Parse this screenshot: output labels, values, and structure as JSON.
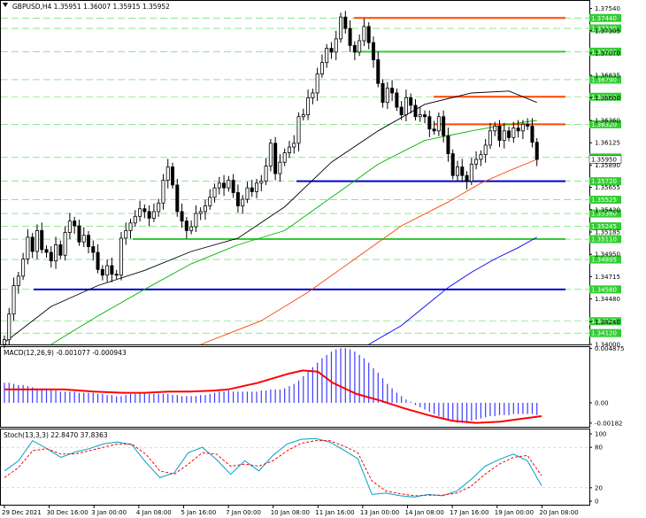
{
  "header": {
    "main": "GBPUSD,H4  1.35951 1.36007 1.35915 1.35952",
    "macd": "MACD(12,26,9) -0.001077 -0.000943",
    "stoch": "Stoch(13,3,3) 22.8470 37.8363"
  },
  "colors": {
    "background": "#ffffff",
    "candle": "#000000",
    "ma_black": "#000000",
    "ma_green": "#00b400",
    "ma_orange": "#ff4500",
    "ma_blue": "#0000ff",
    "grid_green": "#00c800",
    "macd_hist": "#3c3cff",
    "macd_signal": "#ff0000",
    "stoch_main": "#00a0c8",
    "stoch_signal": "#ff0000",
    "hline_blue": "#0000cd",
    "hline_green": "#32cd32",
    "hline_orange": "#ff4500",
    "tag_bg": "#32cd32"
  },
  "chart_data": [
    {
      "type": "candlestick",
      "title": "GBPUSD,H4",
      "ohlc_header": [
        "1.35951",
        "1.36007",
        "1.35915",
        "1.35952"
      ],
      "ylim": [
        1.34,
        1.3762
      ],
      "y_ticks": [
        "1.37540",
        "1.37305",
        "1.37070",
        "1.36835",
        "1.36600",
        "1.36360",
        "1.36125",
        "1.35890",
        "1.35655",
        "1.35420",
        "1.35185",
        "1.34950",
        "1.34715",
        "1.34480",
        "1.34240",
        "1.34000"
      ],
      "price_tags": [
        "1.37440",
        "1.37330",
        "1.37085",
        "1.36790",
        "1.36610",
        "1.36320",
        "1.35970",
        "1.35720",
        "1.35525",
        "1.35380",
        "1.35245",
        "1.35110",
        "1.34895",
        "1.34580",
        "1.34245",
        "1.34120"
      ],
      "current_price": "1.35950",
      "x_ticks": [
        "29 Dec 2021",
        "30 Dec 16:00",
        "3 Jan 00:00",
        "4 Jan 08:00",
        "5 Jan 16:00",
        "7 Jan 00:00",
        "10 Jan 08:00",
        "11 Jan 16:00",
        "13 Jan 00:00",
        "14 Jan 08:00",
        "17 Jan 16:00",
        "19 Jan 00:00",
        "20 Jan 08:00"
      ],
      "closes": [
        1.3405,
        1.3432,
        1.3462,
        1.3472,
        1.349,
        1.3513,
        1.3498,
        1.352,
        1.35,
        1.3497,
        1.3488,
        1.3505,
        1.3494,
        1.3518,
        1.353,
        1.3525,
        1.3508,
        1.3515,
        1.3503,
        1.3497,
        1.3479,
        1.3473,
        1.3483,
        1.3474,
        1.3473,
        1.3512,
        1.352,
        1.3528,
        1.3535,
        1.3543,
        1.354,
        1.3533,
        1.354,
        1.3549,
        1.3573,
        1.3587,
        1.3568,
        1.354,
        1.353,
        1.352,
        1.3524,
        1.3538,
        1.354,
        1.3546,
        1.3555,
        1.3565,
        1.357,
        1.3565,
        1.3573,
        1.356,
        1.3546,
        1.3553,
        1.3565,
        1.3561,
        1.357,
        1.3572,
        1.3588,
        1.3612,
        1.358,
        1.3592,
        1.3602,
        1.3608,
        1.3612,
        1.364,
        1.3642,
        1.366,
        1.3665,
        1.3685,
        1.3697,
        1.3712,
        1.3708,
        1.3722,
        1.3745,
        1.3733,
        1.3715,
        1.3708,
        1.372,
        1.3735,
        1.3718,
        1.37,
        1.3675,
        1.3655,
        1.367,
        1.3665,
        1.365,
        1.3642,
        1.366,
        1.3652,
        1.364,
        1.3642,
        1.364,
        1.3627,
        1.3625,
        1.364,
        1.362,
        1.3601,
        1.3578,
        1.3587,
        1.3578,
        1.3572,
        1.359,
        1.3595,
        1.36,
        1.361,
        1.3625,
        1.363,
        1.3615,
        1.3625,
        1.3618,
        1.3628,
        1.3625,
        1.3632,
        1.363,
        1.3613,
        1.3595
      ],
      "horizontal_levels": [
        {
          "name": "orange",
          "value": 1.3744
        },
        {
          "name": "green",
          "value": 1.37085
        },
        {
          "name": "orange",
          "value": 1.3661
        },
        {
          "name": "orange",
          "value": 1.3632
        },
        {
          "name": "blue",
          "value": 1.3572
        },
        {
          "name": "green",
          "value": 1.3511
        },
        {
          "name": "blue",
          "value": 1.3458
        }
      ],
      "moving_averages": [
        {
          "color": "black",
          "points": [
            [
              0,
              1.3402
            ],
            [
              10,
              1.344
            ],
            [
              20,
              1.3462
            ],
            [
              30,
              1.3478
            ],
            [
              40,
              1.3498
            ],
            [
              50,
              1.3512
            ],
            [
              60,
              1.3545
            ],
            [
              70,
              1.3592
            ],
            [
              80,
              1.3625
            ],
            [
              90,
              1.3653
            ],
            [
              100,
              1.3665
            ],
            [
              108,
              1.3667
            ],
            [
              114,
              1.3655
            ]
          ]
        },
        {
          "color": "green",
          "points": [
            [
              10,
              1.34
            ],
            [
              20,
              1.343
            ],
            [
              30,
              1.3458
            ],
            [
              40,
              1.3485
            ],
            [
              50,
              1.3505
            ],
            [
              60,
              1.352
            ],
            [
              70,
              1.3555
            ],
            [
              80,
              1.359
            ],
            [
              90,
              1.3615
            ],
            [
              100,
              1.3625
            ],
            [
              108,
              1.3632
            ],
            [
              114,
              1.3636
            ]
          ]
        },
        {
          "color": "orange",
          "points": [
            [
              42,
              1.34
            ],
            [
              55,
              1.3425
            ],
            [
              65,
              1.3455
            ],
            [
              75,
              1.349
            ],
            [
              85,
              1.3525
            ],
            [
              95,
              1.355
            ],
            [
              102,
              1.357
            ],
            [
              108,
              1.3583
            ],
            [
              114,
              1.3595
            ]
          ]
        },
        {
          "color": "blue",
          "points": [
            [
              78,
              1.34
            ],
            [
              85,
              1.342
            ],
            [
              90,
              1.344
            ],
            [
              95,
              1.346
            ],
            [
              100,
              1.3476
            ],
            [
              105,
              1.349
            ],
            [
              110,
              1.3502
            ],
            [
              114,
              1.3513
            ]
          ]
        }
      ]
    },
    {
      "type": "bar",
      "title": "MACD(12,26,9)",
      "values_header": [
        "-0.001077",
        "-0.000943"
      ],
      "ylim": [
        -0.00215,
        0.005
      ],
      "y_ticks": [
        "0.004875",
        "0.00",
        "-0.00182"
      ],
      "histogram": [
        0.0018,
        0.0018,
        0.0017,
        0.0016,
        0.0016,
        0.0015,
        0.0014,
        0.0013,
        0.0013,
        0.0013,
        0.0012,
        0.0011,
        0.001,
        0.001,
        0.001,
        0.001,
        0.0009,
        0.0009,
        0.0009,
        0.0009,
        0.0008,
        0.0008,
        0.0007,
        0.0007,
        0.0006,
        0.0006,
        0.0007,
        0.0008,
        0.0008,
        0.0009,
        0.0009,
        0.0008,
        0.0008,
        0.0008,
        0.0008,
        0.0008,
        0.0007,
        0.0007,
        0.0006,
        0.0006,
        0.0006,
        0.0006,
        0.0007,
        0.0007,
        0.0008,
        0.0009,
        0.001,
        0.001,
        0.0011,
        0.001,
        0.001,
        0.001,
        0.001,
        0.001,
        0.001,
        0.0011,
        0.0011,
        0.0012,
        0.0012,
        0.0012,
        0.0013,
        0.0015,
        0.0017,
        0.002,
        0.0024,
        0.0028,
        0.0032,
        0.0036,
        0.004,
        0.0043,
        0.0046,
        0.0048,
        0.0049,
        0.0049,
        0.0048,
        0.0046,
        0.0043,
        0.004,
        0.0036,
        0.0031,
        0.0027,
        0.0022,
        0.0017,
        0.0013,
        0.0009,
        0.0006,
        0.0003,
        0.0001,
        -0.0002,
        -0.0004,
        -0.0006,
        -0.0008,
        -0.001,
        -0.0012,
        -0.0014,
        -0.0016,
        -0.0017,
        -0.0018,
        -0.0018,
        -0.0017,
        -0.0016,
        -0.0015,
        -0.0014,
        -0.0013,
        -0.0012,
        -0.0012,
        -0.0011,
        -0.0011,
        -0.0011,
        -0.001,
        -0.001,
        -0.001,
        -0.001,
        -0.001,
        -0.0011
      ],
      "signal": [
        [
          0,
          0.0012
        ],
        [
          10,
          0.0012
        ],
        [
          20,
          0.0012
        ],
        [
          30,
          0.001
        ],
        [
          40,
          0.0009
        ],
        [
          47,
          0.0009
        ],
        [
          55,
          0.001
        ],
        [
          62,
          0.001
        ],
        [
          70,
          0.0011
        ],
        [
          75,
          0.0012
        ],
        [
          85,
          0.0018
        ],
        [
          95,
          0.0026
        ],
        [
          100,
          0.0029
        ],
        [
          105,
          0.0028
        ],
        [
          110,
          0.0018
        ],
        [
          118,
          0.0008
        ],
        [
          126,
          0.0002
        ],
        [
          134,
          -0.0005
        ],
        [
          142,
          -0.0011
        ],
        [
          150,
          -0.0016
        ],
        [
          158,
          -0.0018
        ],
        [
          166,
          -0.0017
        ],
        [
          174,
          -0.0014
        ],
        [
          180,
          -0.0012
        ]
      ]
    },
    {
      "type": "line",
      "title": "Stoch(13,3,3)",
      "values_header": [
        "22.8470",
        "37.8363"
      ],
      "ylim": [
        0,
        100
      ],
      "y_ticks": [
        "100",
        "80",
        "20",
        "0"
      ],
      "series": [
        {
          "name": "main",
          "points": [
            [
              0,
              45
            ],
            [
              4,
              60
            ],
            [
              8,
              90
            ],
            [
              12,
              78
            ],
            [
              16,
              65
            ],
            [
              20,
              73
            ],
            [
              24,
              78
            ],
            [
              28,
              85
            ],
            [
              32,
              88
            ],
            [
              36,
              84
            ],
            [
              40,
              58
            ],
            [
              44,
              35
            ],
            [
              48,
              42
            ],
            [
              52,
              72
            ],
            [
              56,
              80
            ],
            [
              60,
              62
            ],
            [
              64,
              40
            ],
            [
              68,
              60
            ],
            [
              72,
              45
            ],
            [
              76,
              68
            ],
            [
              80,
              85
            ],
            [
              84,
              92
            ],
            [
              88,
              93
            ],
            [
              92,
              88
            ],
            [
              96,
              76
            ],
            [
              100,
              63
            ],
            [
              104,
              10
            ],
            [
              108,
              12
            ],
            [
              112,
              8
            ],
            [
              116,
              6
            ],
            [
              120,
              10
            ],
            [
              124,
              8
            ],
            [
              128,
              15
            ],
            [
              132,
              32
            ],
            [
              136,
              52
            ],
            [
              140,
              62
            ],
            [
              144,
              70
            ],
            [
              148,
              60
            ],
            [
              152,
              23
            ]
          ]
        },
        {
          "name": "signal",
          "points": [
            [
              0,
              35
            ],
            [
              4,
              50
            ],
            [
              8,
              75
            ],
            [
              12,
              78
            ],
            [
              16,
              70
            ],
            [
              20,
              70
            ],
            [
              24,
              75
            ],
            [
              28,
              80
            ],
            [
              32,
              85
            ],
            [
              36,
              85
            ],
            [
              40,
              70
            ],
            [
              44,
              45
            ],
            [
              48,
              40
            ],
            [
              52,
              55
            ],
            [
              56,
              72
            ],
            [
              60,
              70
            ],
            [
              64,
              52
            ],
            [
              68,
              55
            ],
            [
              72,
              52
            ],
            [
              76,
              60
            ],
            [
              80,
              75
            ],
            [
              84,
              86
            ],
            [
              88,
              90
            ],
            [
              92,
              90
            ],
            [
              96,
              82
            ],
            [
              100,
              72
            ],
            [
              104,
              30
            ],
            [
              108,
              15
            ],
            [
              112,
              11
            ],
            [
              116,
              8
            ],
            [
              120,
              9
            ],
            [
              124,
              9
            ],
            [
              128,
              12
            ],
            [
              132,
              22
            ],
            [
              136,
              40
            ],
            [
              140,
              55
            ],
            [
              144,
              65
            ],
            [
              148,
              68
            ],
            [
              152,
              38
            ]
          ]
        }
      ]
    }
  ]
}
